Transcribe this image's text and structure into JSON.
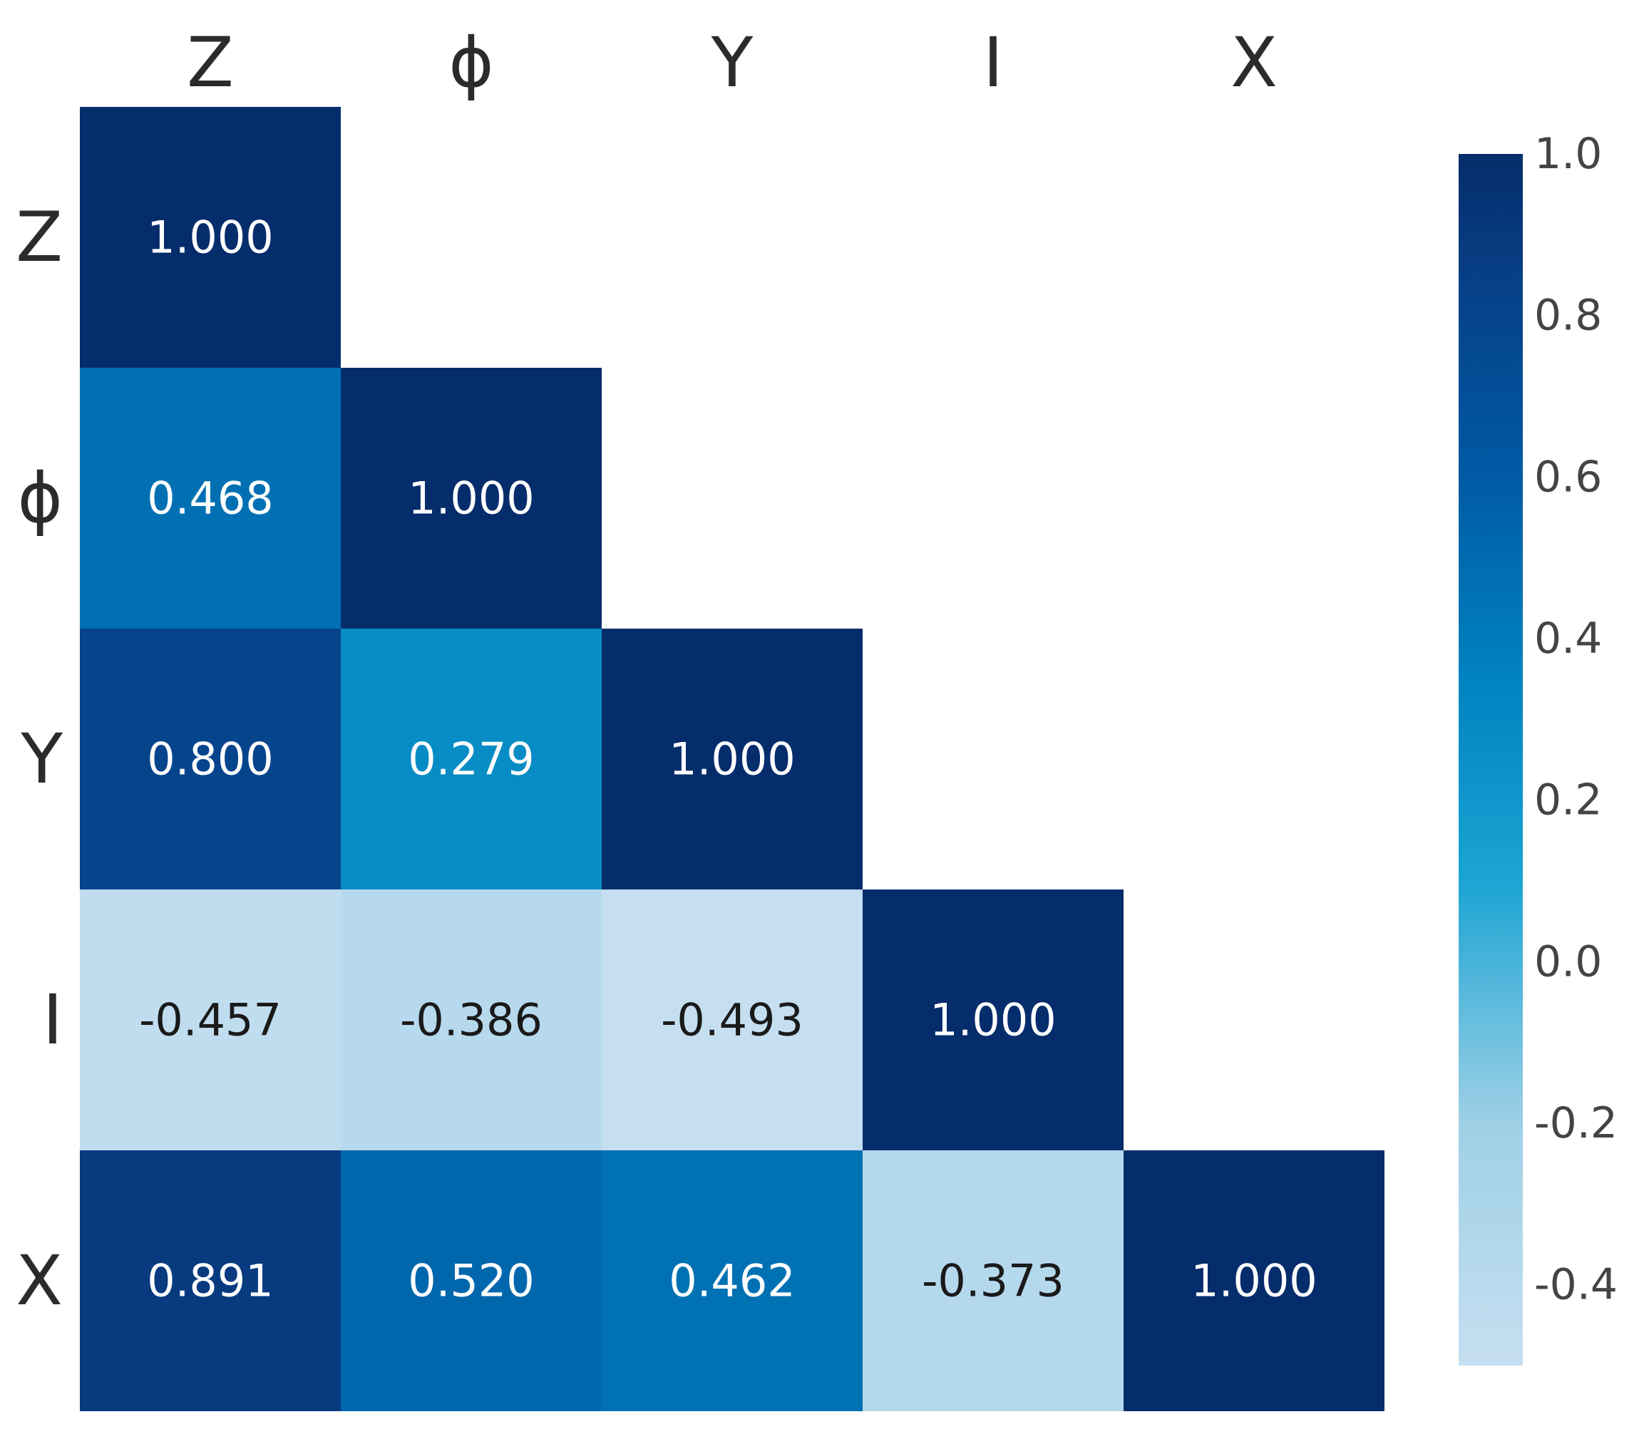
{
  "chart_data": {
    "type": "heatmap",
    "title": "",
    "xlabel": "",
    "ylabel": "",
    "variables": [
      "Z",
      "ϕ",
      "Y",
      "I",
      "X"
    ],
    "matrix": [
      [
        1.0,
        null,
        null,
        null,
        null
      ],
      [
        0.468,
        1.0,
        null,
        null,
        null
      ],
      [
        0.8,
        0.279,
        1.0,
        null,
        null
      ],
      [
        -0.457,
        -0.386,
        -0.493,
        1.0,
        null
      ],
      [
        0.891,
        0.52,
        0.462,
        -0.373,
        1.0
      ]
    ],
    "cell_text": [
      [
        "1.000",
        "",
        "",
        "",
        ""
      ],
      [
        "0.468",
        "1.000",
        "",
        "",
        ""
      ],
      [
        "0.800",
        "0.279",
        "1.000",
        "",
        ""
      ],
      [
        "-0.457",
        "-0.386",
        "-0.493",
        "1.000",
        ""
      ],
      [
        "0.891",
        "0.520",
        "0.462",
        "-0.373",
        "1.000"
      ]
    ],
    "mask": "upper-triangle",
    "colorscale": "Blues",
    "zrange": [
      -0.5,
      1.0
    ],
    "colorbar": {
      "placement": "right",
      "ticks": [
        1.0,
        0.8,
        0.6,
        0.4,
        0.2,
        0.0,
        -0.2,
        -0.4
      ],
      "tick_labels": [
        "1.0",
        "0.8",
        "0.6",
        "0.4",
        "0.2",
        "0.0",
        "-0.2",
        "-0.4"
      ]
    },
    "grid": false,
    "legend": "none"
  },
  "colors": {
    "scale": [
      [
        -0.5,
        "#c6dff1"
      ],
      [
        -0.2,
        "#9ed0e6"
      ],
      [
        0.1,
        "#1ba4d3"
      ],
      [
        0.35,
        "#0083c0"
      ],
      [
        0.6,
        "#005aa4"
      ],
      [
        0.85,
        "#073f86"
      ],
      [
        1.0,
        "#062d6b"
      ]
    ],
    "light_text": "#ffffff",
    "dark_text": "#1a1a1a"
  }
}
